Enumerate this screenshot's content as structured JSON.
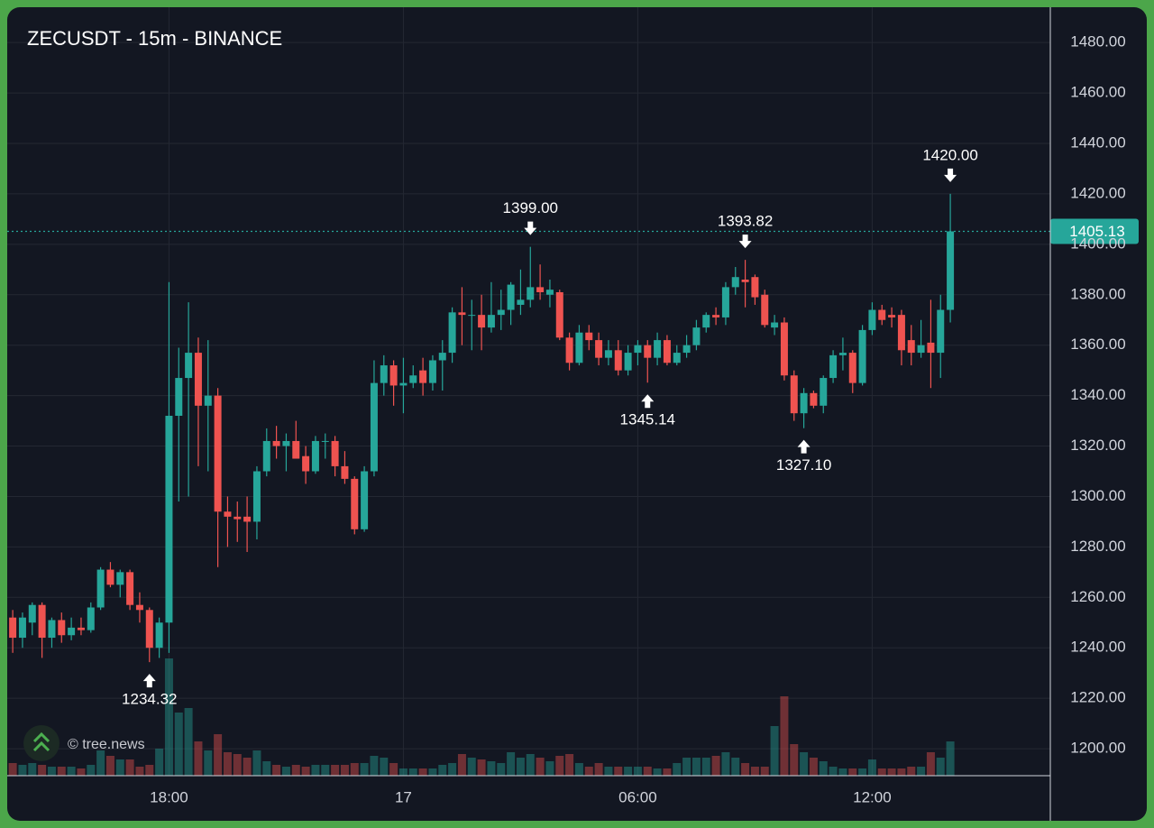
{
  "chart_data": {
    "type": "candlestick",
    "title": "ZECUSDT - 15m - BINANCE",
    "watermark": "© tree.news",
    "categories": [
      null,
      null,
      null,
      null,
      null,
      null,
      null,
      null,
      null,
      null,
      null,
      null,
      null,
      null,
      null,
      null,
      "18:00",
      null,
      null,
      null,
      null,
      null,
      null,
      null,
      null,
      null,
      null,
      null,
      null,
      null,
      null,
      null,
      null,
      null,
      null,
      null,
      null,
      null,
      null,
      null,
      "17",
      null,
      null,
      null,
      null,
      null,
      null,
      null,
      null,
      null,
      null,
      null,
      null,
      null,
      null,
      null,
      null,
      null,
      null,
      null,
      null,
      null,
      null,
      null,
      "06:00",
      null,
      null,
      null,
      null,
      null,
      null,
      null,
      null,
      null,
      null,
      null,
      null,
      null,
      null,
      null,
      null,
      null,
      null,
      null,
      null,
      null,
      null,
      null,
      "12:00",
      null,
      null,
      null,
      null,
      null,
      null,
      null,
      null
    ],
    "open": [
      1252,
      1244,
      1250,
      1257,
      1244,
      1251,
      1245,
      1248,
      1247,
      1256,
      1271,
      1265,
      1270,
      1257,
      1255,
      1240,
      1250,
      1332,
      1347,
      1357,
      1336,
      1340,
      1294,
      1292,
      1292,
      1290,
      1310,
      1322,
      1320,
      1322,
      1316,
      1310,
      1322,
      1322,
      1312,
      1307,
      1287,
      1310,
      1345,
      1352,
      1344,
      1345,
      1350,
      1345,
      1354,
      1357,
      1373,
      1372,
      1372,
      1367,
      1372,
      1374,
      1376,
      1378,
      1383,
      1380,
      1381,
      1363,
      1353,
      1365,
      1362,
      1355,
      1358,
      1350,
      1357,
      1360,
      1355,
      1362,
      1353,
      1357,
      1360,
      1367,
      1372,
      1371,
      1383,
      1386,
      1387,
      1380,
      1367,
      1369,
      1348,
      1333,
      1341,
      1336,
      1347,
      1356,
      1357,
      1345,
      1366,
      1374,
      1372,
      1372,
      1362,
      1357,
      1361,
      1357,
      1374
    ],
    "high": [
      1255,
      1254,
      1258,
      1258,
      1252,
      1254,
      1252,
      1252,
      1258,
      1272,
      1274,
      1271,
      1271,
      1262,
      1256,
      1252,
      1385,
      1359,
      1377,
      1363,
      1362,
      1343,
      1300,
      1298,
      1300,
      1312,
      1327,
      1328,
      1325,
      1330,
      1320,
      1324,
      1325,
      1324,
      1318,
      1308,
      1312,
      1354,
      1356,
      1354,
      1355,
      1352,
      1355,
      1356,
      1362,
      1375,
      1383,
      1378,
      1380,
      1385,
      1382,
      1385,
      1390,
      1399,
      1392,
      1386,
      1382,
      1365,
      1368,
      1368,
      1365,
      1362,
      1362,
      1360,
      1362,
      1362,
      1365,
      1364,
      1360,
      1364,
      1370,
      1373,
      1375,
      1385,
      1391,
      1393.82,
      1388,
      1382,
      1372,
      1371,
      1350,
      1343,
      1342,
      1348,
      1358,
      1363,
      1358,
      1368,
      1377,
      1376,
      1375,
      1374,
      1368,
      1370,
      1378,
      1380,
      1420
    ],
    "low": [
      1238,
      1240,
      1245,
      1236,
      1240,
      1242,
      1243,
      1245,
      1246,
      1255,
      1264,
      1260,
      1255,
      1250,
      1234.32,
      1236,
      1238,
      1298,
      1300,
      1312,
      1310,
      1272,
      1280,
      1282,
      1278,
      1283,
      1308,
      1315,
      1310,
      1315,
      1305,
      1309,
      1315,
      1308,
      1305,
      1285,
      1286,
      1308,
      1340,
      1336,
      1333,
      1343,
      1340,
      1342,
      1342,
      1353,
      1360,
      1358,
      1358,
      1365,
      1366,
      1368,
      1372,
      1375,
      1378,
      1375,
      1362,
      1350,
      1352,
      1358,
      1352,
      1352,
      1348,
      1348,
      1352,
      1345.14,
      1352,
      1352,
      1352,
      1355,
      1358,
      1365,
      1368,
      1368,
      1380,
      1375,
      1376,
      1367,
      1364,
      1346,
      1330,
      1327.1,
      1335,
      1333,
      1345,
      1350,
      1341,
      1344,
      1364,
      1368,
      1367,
      1352,
      1352,
      1355,
      1343,
      1347,
      1369
    ],
    "close": [
      1244,
      1252,
      1257,
      1244,
      1251,
      1245,
      1248,
      1247,
      1256,
      1271,
      1265,
      1270,
      1257,
      1255,
      1240,
      1250,
      1332,
      1347,
      1357,
      1336,
      1340,
      1294,
      1292,
      1291,
      1290,
      1310,
      1322,
      1320,
      1322,
      1315,
      1310,
      1322,
      1322,
      1312,
      1307,
      1287,
      1310,
      1345,
      1352,
      1344,
      1345,
      1348,
      1345,
      1354,
      1357,
      1373,
      1372,
      1372,
      1367,
      1372,
      1374,
      1384,
      1378,
      1383,
      1381,
      1382,
      1363,
      1353,
      1365,
      1362,
      1355,
      1358,
      1350,
      1357,
      1360,
      1355,
      1362,
      1353,
      1357,
      1360,
      1367,
      1372,
      1371,
      1383,
      1387,
      1385,
      1379,
      1368,
      1369,
      1348,
      1333,
      1341,
      1336,
      1347,
      1356,
      1357,
      1345,
      1366,
      1374,
      1370,
      1371,
      1358,
      1357,
      1360,
      1357,
      1374,
      1405.13
    ],
    "volume": [
      14,
      12,
      14,
      12,
      10,
      10,
      10,
      8,
      12,
      28,
      22,
      18,
      18,
      10,
      12,
      30,
      130,
      70,
      75,
      38,
      28,
      46,
      26,
      24,
      20,
      28,
      16,
      12,
      10,
      12,
      10,
      12,
      12,
      12,
      12,
      14,
      14,
      22,
      20,
      14,
      8,
      8,
      8,
      8,
      12,
      14,
      24,
      20,
      18,
      16,
      14,
      26,
      20,
      24,
      20,
      16,
      22,
      24,
      14,
      10,
      14,
      10,
      10,
      10,
      10,
      10,
      8,
      8,
      14,
      20,
      20,
      20,
      22,
      26,
      20,
      14,
      10,
      10,
      55,
      88,
      35,
      26,
      20,
      16,
      10,
      8,
      8,
      8,
      18,
      8,
      8,
      8,
      10,
      10,
      26,
      20,
      38
    ],
    "up_color": "#26a69a",
    "down_color": "#ef5350",
    "ylim": [
      1189.3,
      1494
    ],
    "yticks": [
      {
        "value": 1200,
        "label": "1200.00"
      },
      {
        "value": 1220,
        "label": "1220.00"
      },
      {
        "value": 1240,
        "label": "1240.00"
      },
      {
        "value": 1260,
        "label": "1260.00"
      },
      {
        "value": 1280,
        "label": "1280.00"
      },
      {
        "value": 1300,
        "label": "1300.00"
      },
      {
        "value": 1320,
        "label": "1320.00"
      },
      {
        "value": 1340,
        "label": "1340.00"
      },
      {
        "value": 1360,
        "label": "1360.00"
      },
      {
        "value": 1380,
        "label": "1380.00"
      },
      {
        "value": 1400,
        "label": "1400.00"
      },
      {
        "value": 1420,
        "label": "1420.00"
      },
      {
        "value": 1440,
        "label": "1440.00"
      },
      {
        "value": 1460,
        "label": "1460.00"
      },
      {
        "value": 1480,
        "label": "1480.00"
      }
    ],
    "annotations": [
      {
        "text": "1234.32",
        "value": 1234.32,
        "at": 14
      },
      {
        "text": "1399.00",
        "value": 1399,
        "at": 53
      },
      {
        "text": "1345.14",
        "value": 1345.14,
        "at": 65
      },
      {
        "text": "1393.82",
        "value": 1393.82,
        "at": 75
      },
      {
        "text": "1327.10",
        "value": 1327.1,
        "at": 81
      },
      {
        "text": "1420.00",
        "value": 1420,
        "at": 96
      }
    ],
    "grid": true
  }
}
